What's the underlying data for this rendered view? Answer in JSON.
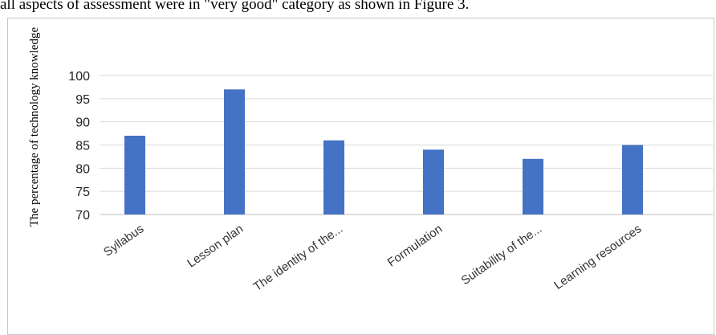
{
  "page": {
    "caption_text": "all aspects of assessment were in \"very good\" category as shown in Figure 3."
  },
  "chart_data": {
    "type": "bar",
    "title": "",
    "xlabel": "",
    "ylabel": "The percentage of technology knowledge",
    "categories": [
      "Syllabus",
      "Lesson plan",
      "The identity of the...",
      "Formulation",
      "Suitability of the...",
      "Learning resources"
    ],
    "values": [
      87,
      97,
      86,
      84,
      82,
      85
    ],
    "ylim": [
      70,
      100
    ],
    "yticks": [
      70,
      75,
      80,
      85,
      90,
      95,
      100
    ],
    "grid": true,
    "bar_color": "#4472c4",
    "grid_color": "#d9d9d9"
  }
}
